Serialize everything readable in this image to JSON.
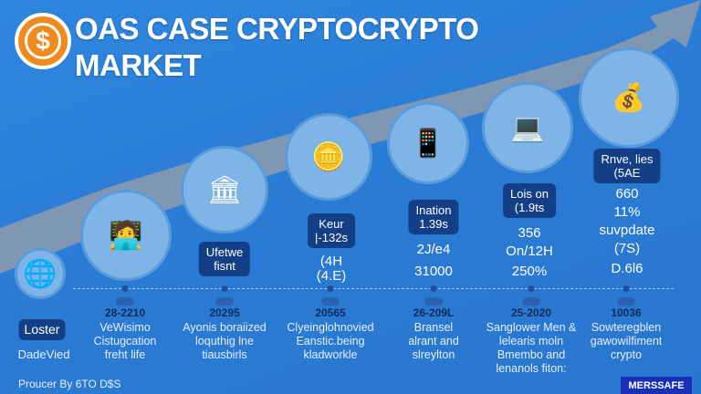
{
  "header": {
    "title_line1": "OAS CASE CRYPTOCRYPTO",
    "title_line2": "MARKET",
    "icon": "dollar-coin-icon"
  },
  "colors": {
    "background": "#2a7bd4",
    "box": "#143f86",
    "coin": "#f08a1c"
  },
  "stages": [
    {
      "box": [
        "Loster"
      ],
      "year": "",
      "desc": [
        "DadeVied"
      ],
      "icon": "globe-tree-icon"
    },
    {
      "box": [],
      "stats": [],
      "year": "28-2210",
      "desc": [
        "VeWisimo",
        "Cistugcation",
        "freht life"
      ],
      "icon": "network-person-icon"
    },
    {
      "box": [
        "Ufetwe",
        "fisnt"
      ],
      "stats": [],
      "year": "20295",
      "desc": [
        "Ayonis boraiized",
        "loquthig lne",
        "tiausbirls"
      ],
      "icon": "bank-icon"
    },
    {
      "box": [
        "Keur",
        "|-132s"
      ],
      "stats": [
        "(4H",
        "(4.E)"
      ],
      "year": "20565",
      "desc": [
        "Clyeinglohnovied",
        "Eanstic.being",
        "kladworkle"
      ],
      "icon": "hand-coin-icon"
    },
    {
      "box": [
        "Ination",
        "1.39s"
      ],
      "stats": [
        "2J/e4",
        "31000"
      ],
      "year": "26-209L",
      "desc": [
        "Bransel",
        "alrant and",
        "slreylton"
      ],
      "icon": "wallet-phone-icon"
    },
    {
      "box": [
        "Lois on",
        "(1.9ts"
      ],
      "stats": [
        "356",
        "On/12H",
        "250%"
      ],
      "year": "25-2020",
      "desc": [
        "Sanglower Men &",
        "lelearis moln",
        "Bmembo and",
        "lenanols fiton:"
      ],
      "icon": "person-laptop-icon"
    },
    {
      "box": [
        "Rnve, lies",
        "(5AE"
      ],
      "stats": [
        "660",
        "11%",
        "suvpdate",
        "(7S)",
        "D.6l6"
      ],
      "year": "10036",
      "desc": [
        "Sowteregblen",
        "gawowilfiment",
        "crypto"
      ],
      "icon": "investors-coins-icon"
    }
  ],
  "footer": {
    "text": "Proucer By 6TO D$S"
  },
  "logo": {
    "text": "MERSSAFE"
  }
}
